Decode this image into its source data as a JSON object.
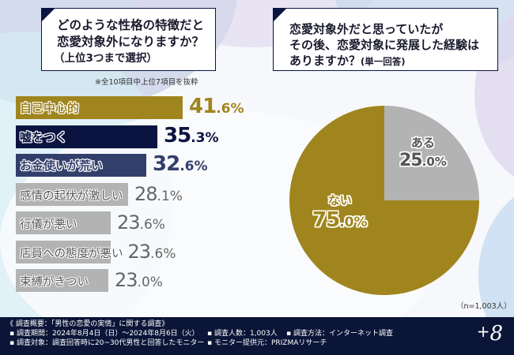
{
  "question_left": {
    "lines": [
      "どのような性格の特徴だと",
      "恋愛対象外になりますか？"
    ],
    "sub": "（上位3つまで選択）"
  },
  "question_right": {
    "lines": [
      "恋愛対象外だと思っていたが",
      "その後、恋愛対象に発展した経験は"
    ],
    "last_line": "ありますか？",
    "sub": "(単一回答)"
  },
  "note_left": "※全10項目中上位7項目を抜粋",
  "sample_note": "（n=1,003人）",
  "chart_data": [
    {
      "type": "bar",
      "orientation": "horizontal",
      "title": "どのような性格の特徴だと恋愛対象外になりますか？（上位3つまで選択）",
      "categories": [
        "自己中心的",
        "嘘をつく",
        "お金使いが荒い",
        "感情の起伏が激しい",
        "行儀が悪い",
        "店員への態度が悪い",
        "束縛がきつい"
      ],
      "values": [
        41.6,
        35.3,
        32.6,
        28.1,
        23.6,
        23.6,
        23.0
      ],
      "value_labels": [
        {
          "int": "41",
          "dec": ".6%"
        },
        {
          "int": "35",
          "dec": ".3%"
        },
        {
          "int": "32",
          "dec": ".6%"
        },
        {
          "int": "28",
          "dec": ".1%"
        },
        {
          "int": "23",
          "dec": ".6%"
        },
        {
          "int": "23",
          "dec": ".6%"
        },
        {
          "int": "23",
          "dec": ".0%"
        }
      ],
      "unit": "%",
      "bar_colors": [
        "#a0851e",
        "#0b1440",
        "#333f6b",
        "#b3b3b3",
        "#b3b3b3",
        "#b3b3b3",
        "#b3b3b3"
      ],
      "value_colors": [
        "#a0851e",
        "#0b1440",
        "#333f6b",
        "#666666",
        "#666666",
        "#666666",
        "#666666"
      ]
    },
    {
      "type": "pie",
      "title": "恋愛対象外だと思っていたがその後、恋愛対象に発展した経験はありますか？(単一回答)",
      "categories": [
        "ある",
        "ない"
      ],
      "values": [
        25.0,
        75.0
      ],
      "value_labels": [
        {
          "int": "25",
          "dec": ".0%"
        },
        {
          "int": "75",
          "dec": ".0%"
        }
      ],
      "colors": [
        "#b3b3b3",
        "#a0851e"
      ],
      "start": "12 o'clock, clockwise"
    }
  ],
  "footer": {
    "heading": "《 調査概要：「男性の恋愛の実情」に関する調査》",
    "period": "▪ 調査期間：2024年8月4日（日）～2024年8月6日（火）",
    "target": "▪ 調査対象：調査回答時に20~30代男性と回答したモニター",
    "count": "▪ 調査人数：1,003人",
    "method": "▪ 調査方法：インターネット調査",
    "provider": "▪ モニター提供元：PRIZMAリサーチ",
    "logo_plus": "+",
    "logo_num": "8"
  }
}
